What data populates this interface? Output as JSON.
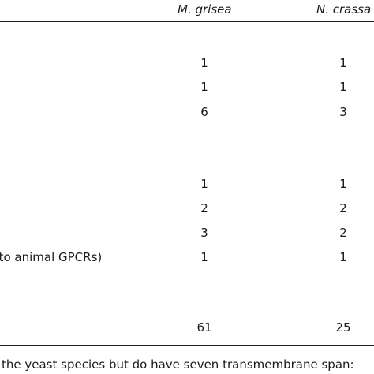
{
  "table": {
    "headers": {
      "m_grisea": "M. grisea",
      "n_crassa": "N. crassa"
    },
    "rows": [
      {
        "label": "",
        "m_grisea": "1",
        "n_crassa": "1"
      },
      {
        "label": "",
        "m_grisea": "1",
        "n_crassa": "1"
      },
      {
        "label": "",
        "m_grisea": "6",
        "n_crassa": "3"
      },
      {
        "label": "",
        "m_grisea": "1",
        "n_crassa": "1"
      },
      {
        "label": "",
        "m_grisea": "2",
        "n_crassa": "2"
      },
      {
        "label": "",
        "m_grisea": "3",
        "n_crassa": "2"
      },
      {
        "label": "s to animal GPCRs)",
        "m_grisea": "1",
        "n_crassa": "1"
      },
      {
        "label": "",
        "m_grisea": "61",
        "n_crassa": "25"
      }
    ]
  },
  "footnote": "the yeast species but do have seven transmembrane span:"
}
